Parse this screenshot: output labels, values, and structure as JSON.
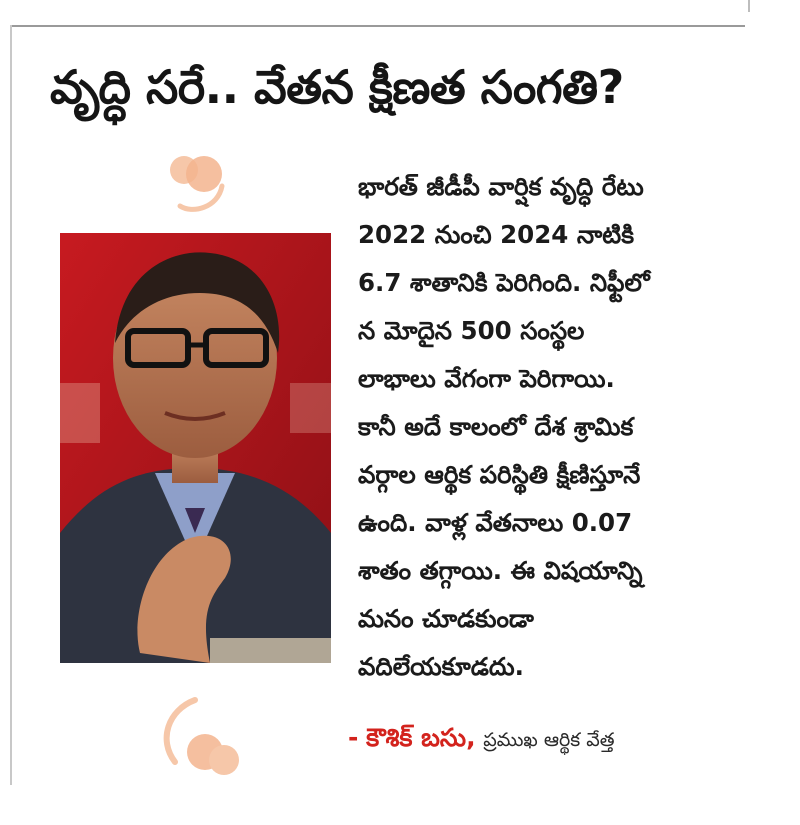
{
  "article": {
    "headline": "వృద్ధి సరే.. వేతన క్షీణత సంగతి?",
    "body_lines": [
      "భారత్ జీడీపీ వార్షిక వృద్ధి రేటు",
      "2022 నుంచి 2024 నాటికి",
      "6.7 శాతానికి పెరిగింది. నిఫ్టీలో",
      "న మోదైన 500 సంస్థల",
      "లాభాలు వేగంగా పెరిగాయి.",
      "కానీ అదే కాలంలో దేశ శ్రామిక",
      "వర్గాల ఆర్థిక పరిస్థితి క్షీణిస్తూనే",
      "ఉంది. వాళ్ల వేతనాలు 0.07",
      "శాతం తగ్గాయి. ఈ విషయాన్ని",
      "మనం చూడకుండా",
      "వదిలేయకూడదు."
    ],
    "byline": {
      "dash": "-",
      "name": "కౌశిక్ బసు,",
      "role": "ప్రముఖ ఆర్థిక వేత్త"
    }
  },
  "colors": {
    "byline_name": "#d3231d",
    "photo_background": "#b3151b",
    "quote_mark": "#f6c7a9"
  },
  "icons": {
    "top_quote": "opening-quote-icon",
    "bottom_quote": "closing-quote-icon"
  }
}
